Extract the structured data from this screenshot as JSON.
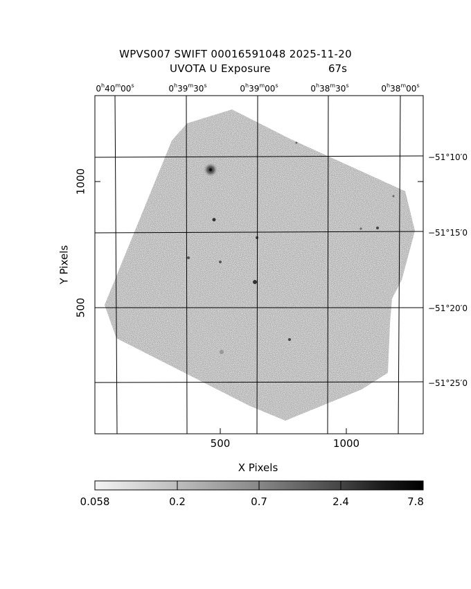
{
  "header": {
    "title_line1": "WPVS007 SWIFT 00016591048 2025-11-20",
    "title_line2": "UVOTA U Exposure",
    "exposure": "67s"
  },
  "axes": {
    "xlabel": "X Pixels",
    "ylabel": "Y Pixels",
    "x_ticks": [
      "500",
      "1000"
    ],
    "y_ticks": [
      "500",
      "1000"
    ]
  },
  "ra_labels": [
    {
      "h": "0",
      "m": "40",
      "s": "00"
    },
    {
      "h": "0",
      "m": "39",
      "s": "30"
    },
    {
      "h": "0",
      "m": "39",
      "s": "00"
    },
    {
      "h": "0",
      "m": "38",
      "s": "30"
    },
    {
      "h": "0",
      "m": "38",
      "s": "00"
    }
  ],
  "dec_labels": [
    "−51°10′0",
    "−51°15′0",
    "−51°20′0",
    "−51°25′0"
  ],
  "colorbar": {
    "labels": [
      "0.058",
      "0.2",
      "0.7",
      "2.4",
      "7.8"
    ],
    "scale": "log"
  },
  "colors": {
    "background": "#ffffff",
    "frame": "#000000",
    "image_gray": "#a8a8a8"
  }
}
